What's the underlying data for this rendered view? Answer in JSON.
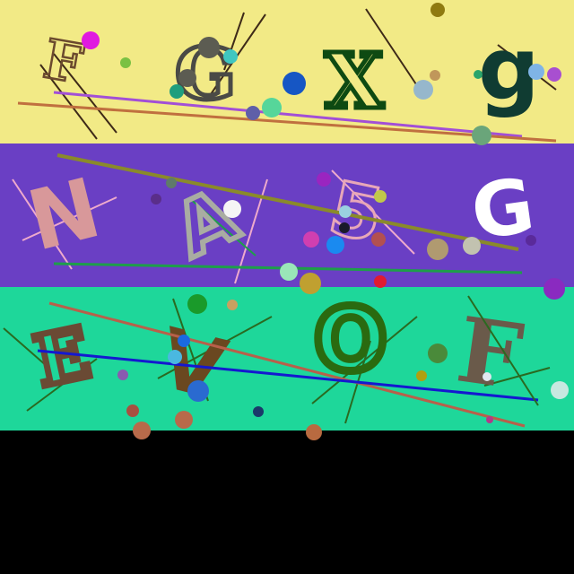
{
  "canvas": {
    "background": "#000000"
  },
  "bands": [
    {
      "color": "#f2ea86",
      "letters": [
        {
          "char": "F",
          "color": "#6b4a2e",
          "style": "outline"
        },
        {
          "char": "G",
          "color": "#4a4a46",
          "style": "outline"
        },
        {
          "char": "X",
          "color": "#0e4a12",
          "style": "outline"
        },
        {
          "char": "g",
          "color": "#103c32",
          "style": "solid"
        }
      ],
      "line_colors": [
        "#a24fd6",
        "#c0703f",
        "#3e2a18"
      ],
      "dot_colors": [
        "#e01ae0",
        "#7ac143",
        "#5c5c52",
        "#1f9e7d",
        "#3fc7c0",
        "#1656c4",
        "#56d69a",
        "#5f5fa8",
        "#8f7a10",
        "#c0975a",
        "#96b7cc",
        "#7fb4e6",
        "#a84fd0",
        "#6aa57a",
        "#2aa56b"
      ]
    },
    {
      "color": "#6a3fc4",
      "letters": [
        {
          "char": "N",
          "color": "#d8989a",
          "style": "solid"
        },
        {
          "char": "A",
          "color": "#a9aca2",
          "style": "outline"
        },
        {
          "char": "5",
          "color": "#e7a7b8",
          "style": "outline"
        },
        {
          "char": "G",
          "color": "#ffffff",
          "style": "solid"
        }
      ],
      "line_colors": [
        "#8a8a2a",
        "#1e9e4a",
        "#eeaacc"
      ],
      "dot_colors": [
        "#5f7a6a",
        "#5a2e8a",
        "#f5f5f5",
        "#9a25c0",
        "#c0c84a",
        "#9ad0e0",
        "#1a1a2a",
        "#d03fb0",
        "#1a8af0",
        "#b35050",
        "#b09a70",
        "#c2c2b0",
        "#5a2a9a",
        "#9ae6b8",
        "#c0a030",
        "#e01a30",
        "#8a2ac0"
      ]
    },
    {
      "color": "#1ed79a",
      "letters": [
        {
          "char": "E",
          "color": "#6a4a34",
          "style": "outline"
        },
        {
          "char": "V",
          "color": "#6a4820",
          "style": "solid"
        },
        {
          "char": "O",
          "color": "#2a6a10",
          "style": "outline"
        },
        {
          "char": "F",
          "color": "#6a5a4a",
          "style": "solid"
        }
      ],
      "line_colors": [
        "#1418d0",
        "#b8604a",
        "#2a6a20"
      ],
      "dot_colors": [
        "#1a9a2a",
        "#c8a060",
        "#1a6ae0",
        "#4ab8e0",
        "#2a6ad0",
        "#8a5ab0",
        "#a85040",
        "#b86a4a",
        "#1a3a6a",
        "#4a8a3a",
        "#b0a010",
        "#c8e8e0",
        "#e0e8f0",
        "#b03a8a",
        "#b86a40"
      ]
    }
  ],
  "bottom_area": {
    "color": "#000000"
  }
}
